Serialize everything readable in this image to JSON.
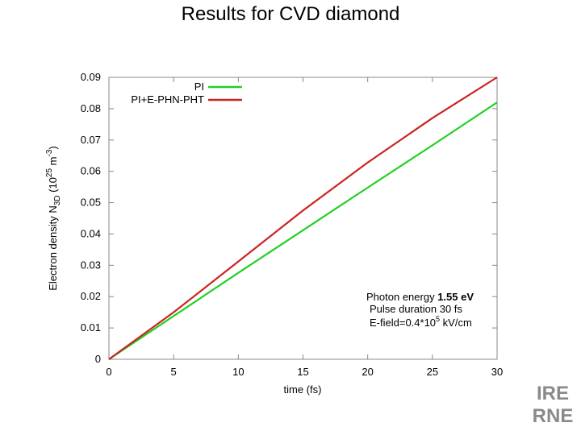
{
  "slide": {
    "title": "Results for CVD diamond"
  },
  "chart_data": {
    "type": "line",
    "title": "",
    "xlabel": "time (fs)",
    "ylabel_main": "Electron density N",
    "ylabel_sub": "3D",
    "ylabel_unit_open": " (10",
    "ylabel_exp": "25",
    "ylabel_unit_mid": " m",
    "ylabel_exp2": "-3",
    "ylabel_unit_close": ")",
    "xlim": [
      0,
      30
    ],
    "ylim": [
      0,
      0.09
    ],
    "xticks": [
      0,
      5,
      10,
      15,
      20,
      25,
      30
    ],
    "yticks": [
      0,
      0.01,
      0.02,
      0.03,
      0.04,
      0.05,
      0.06,
      0.07,
      0.08,
      0.09
    ],
    "xtick_labels": [
      "0",
      "5",
      "10",
      "15",
      "20",
      "25",
      "30"
    ],
    "ytick_labels": [
      "0",
      "0.01",
      "0.02",
      "0.03",
      "0.04",
      "0.05",
      "0.06",
      "0.07",
      "0.08",
      "0.09"
    ],
    "grid": false,
    "legend_position": "top-left",
    "series": [
      {
        "name": "PI",
        "color": "#22d022",
        "x": [
          0,
          5,
          10,
          15,
          20,
          25,
          30
        ],
        "y": [
          0,
          0.0138,
          0.0276,
          0.0412,
          0.0548,
          0.0683,
          0.082
        ]
      },
      {
        "name": "PI+E-PHN-PHT",
        "color": "#cc2222",
        "x": [
          0,
          5,
          10,
          15,
          20,
          25,
          30
        ],
        "y": [
          0,
          0.015,
          0.0312,
          0.0475,
          0.0628,
          0.077,
          0.09
        ]
      }
    ],
    "annotation": {
      "line1_label": "Photon energy ",
      "line1_value": "1.55 eV",
      "line2_label": "Pulse duration",
      "line2_value": " 30 fs",
      "line3_label": "E-field=0.4*10",
      "line3_exp": "5",
      "line3_unit": " kV/cm"
    }
  },
  "logo": {
    "top_text": "IRE",
    "bottom_text": "RNE",
    "color": "#8a8a8a"
  }
}
